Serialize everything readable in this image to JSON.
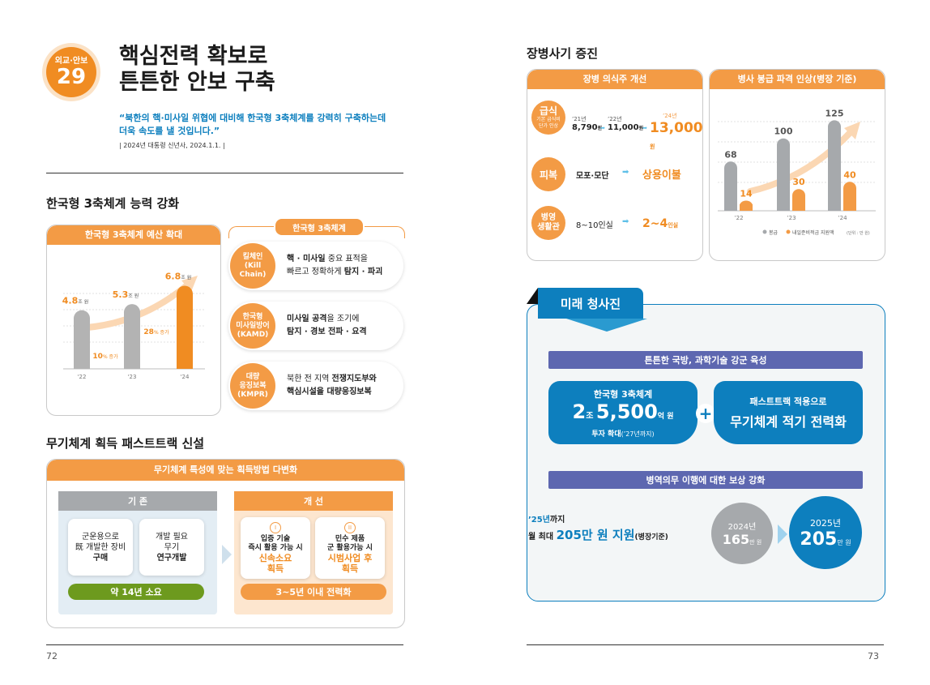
{
  "left_page": {
    "badge_label": "외교·안보",
    "badge_number": "29",
    "title_line1": "핵심전력 확보로",
    "title_line2": "튼튼한 안보 구축",
    "quote_line1": "“북한의  핵·미사일 위협에 대비해 한국형 3축체계를 강력히 구축하는데",
    "quote_line2": "더욱 속도를 낼 것입니다.”",
    "quote_source": "| 2024년 대통령 신년사, 2024.1.1. |",
    "section1_title": "한국형 3축체계 능력 강화",
    "budget_header": "한국형 3축체계 예산 확대",
    "system_header": "한국형 3축체계",
    "section2_title": "무기체계 획득 패스트트랙 신설",
    "fasttrack_header": "무기체계 특성에 맞는 획득방법 다변화",
    "page_number": "72"
  },
  "chart_data": {
    "type": "bar",
    "title": "한국형 3축체계 예산 확대",
    "categories": [
      "'22",
      "'23",
      "'24"
    ],
    "values": [
      4.8,
      5.3,
      6.8
    ],
    "value_labels": [
      "4.8",
      "5.3",
      "6.8"
    ],
    "unit": "조 원",
    "growth_labels": [
      {
        "value": "10",
        "unit": "% 증가"
      },
      {
        "value": "28",
        "unit": "% 증가"
      }
    ],
    "ylim": [
      0,
      7.5
    ],
    "colors": [
      "#b3b3b3",
      "#b3b3b3",
      "#f08c22"
    ],
    "grid": true
  },
  "kill_chain": {
    "items": [
      {
        "name_lines": [
          "킬체인",
          "(Kill Chain)"
        ],
        "line1_bold": "핵 · 미사일",
        "line1_rest": " 중요 표적을",
        "line2_plain": "빠르고 정확하게 ",
        "line2_bold": "탐지 · 파괴"
      },
      {
        "name_lines": [
          "한국형",
          "미사일방어",
          "(KAMD)"
        ],
        "line1_bold": "미사일 공격",
        "line1_rest": "을 조기에",
        "line2_plain": "",
        "line2_bold": "탐지 · 경보 전파 · 요격"
      },
      {
        "name_lines": [
          "대량",
          "응징보복",
          "(KMPR)"
        ],
        "line1_bold": "전쟁지도부와",
        "line1_pre": "북한 전 지역 ",
        "line1_rest": "",
        "line2_plain": "",
        "line2_bold": "핵심시설을 대량응징보복"
      }
    ]
  },
  "fasttrack": {
    "existing_header": "기 존",
    "existing_cards": [
      {
        "line1": "군운용으로",
        "line2": "既 개발한 장비",
        "line3": "구매"
      },
      {
        "line1": "개발 필요",
        "line2": "무기",
        "line3": "연구개발"
      }
    ],
    "existing_footer": "약 14년 소요",
    "improved_header": "개 선",
    "improved_cards": [
      {
        "mark": "I",
        "line1": "입증 기술",
        "line2": "즉시 활용 가능 시",
        "line3": "신속소요",
        "line4": "획득"
      },
      {
        "mark": "II",
        "line1": "민수 제품",
        "line2": "군 활용가능 시",
        "line3": "시범사업 후",
        "line4": "획득"
      }
    ],
    "improved_footer": "3~5년 이내 전력화"
  },
  "right_page": {
    "section_title": "장병사기 증진",
    "left_header": "장병 의식주 개선",
    "right_header": "병사 봉급 파격 인상(병장 기준)",
    "page_number": "73",
    "rows": [
      {
        "tag_lines": [
          "급식"
        ],
        "tag_sub": [
          "기본 급식비",
          "단가 인상"
        ]
      },
      {
        "tag_lines": [
          "피복"
        ],
        "from": "모포·모단",
        "to": "상용이불"
      },
      {
        "tag_lines": [
          "병영",
          "생활관"
        ],
        "from": "8~10인실",
        "to": "2~4",
        "to_unit": "인실"
      }
    ],
    "meal": [
      {
        "year": "’21년",
        "value": "8,790",
        "unit": "원"
      },
      {
        "year": "’22년",
        "value": "11,000",
        "unit": "원"
      },
      {
        "year": "’24년",
        "value": "13,000",
        "unit": "원"
      }
    ]
  },
  "salary_chart": {
    "type": "bar",
    "categories": [
      "’22",
      "’23",
      "’24"
    ],
    "series": [
      {
        "name": "봉급",
        "values": [
          68,
          100,
          125
        ],
        "color": "#a6a9ac"
      },
      {
        "name": "내일준비적금 지원액",
        "values": [
          14,
          30,
          40
        ],
        "color": "#f39b45"
      }
    ],
    "unit_note": "(단위 : 만 원)",
    "ylim": [
      0,
      140
    ],
    "grid": true
  },
  "future": {
    "badge": "미래 청사진",
    "bar1": "튼튼한 국방, 과학기술 강군 육성",
    "box1_l1": "한국형 3축체계",
    "box1_big1": "2",
    "box1_unit1": "조 ",
    "box1_big2": "5,500",
    "box1_unit2": "억 원",
    "box1_l3": "투자 확대",
    "box1_l3_note": "(’27년까지)",
    "plus": "+",
    "box2_l1": "패스트트랙 적용으로",
    "box2_l2": "무기체계 적기 전력화",
    "bar2": "병역의무 이행에 대한 보상 강화",
    "support_l1_year": "’25년",
    "support_l1_rest": "까지",
    "support_l2_pre": "월 최대 ",
    "support_l2_big": "205만 원 지원",
    "support_l2_note": "(병장기준)",
    "c1_year": "2024년",
    "c1_value": "165",
    "c1_unit": "만 원",
    "c2_year": "2025년",
    "c2_value": "205",
    "c2_unit": "만 원"
  }
}
